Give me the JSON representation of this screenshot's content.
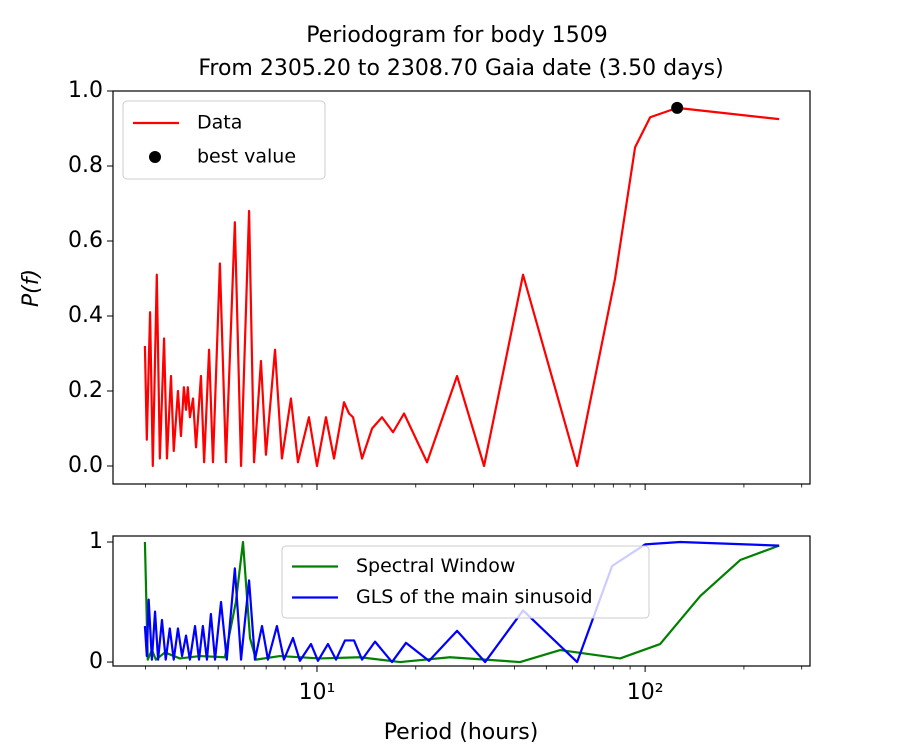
{
  "chart_data": [
    {
      "type": "line",
      "title": [
        "Periodogram for body 1509",
        "From 2305.20 to 2308.70 Gaia date (3.50 days)"
      ],
      "ylabel": "P(f)",
      "xscale": "log",
      "xlim": [
        2.39,
        318
      ],
      "ylim": [
        -0.048,
        1.0
      ],
      "yticks": [
        {
          "value": 0,
          "label": "0.0"
        },
        0.2,
        0.4,
        0.6,
        0.8,
        {
          "value": 1,
          "label": "1.0"
        }
      ],
      "xticks": [
        10,
        100
      ],
      "xminorticks": [
        3,
        4,
        5,
        6,
        7,
        8,
        9,
        20,
        30,
        40,
        50,
        60,
        70,
        80,
        90,
        200,
        300
      ],
      "legend": "upper left",
      "series": [
        {
          "name": "Data",
          "color": "#ff0000",
          "x": [
            2.99,
            3.03,
            3.1,
            3.16,
            3.25,
            3.32,
            3.42,
            3.49,
            3.59,
            3.66,
            3.77,
            3.85,
            3.93,
            3.99,
            4.04,
            4.1,
            4.19,
            4.28,
            4.43,
            4.53,
            4.69,
            4.82,
            5.06,
            5.28,
            5.62,
            5.87,
            6.21,
            6.43,
            6.75,
            6.99,
            7.45,
            7.82,
            8.33,
            8.75,
            9.45,
            10,
            10.65,
            11.27,
            12.09,
            12.52,
            12.88,
            13.72,
            14.72,
            15.78,
            17.05,
            18.42,
            21.65,
            26.72,
            32.3,
            42.46,
            62.06,
            80.98,
            93.2,
            103.6,
            125.2,
            256.1
          ],
          "values": [
            0.32,
            0.07,
            0.41,
            0.0,
            0.51,
            0.02,
            0.34,
            0.02,
            0.24,
            0.04,
            0.2,
            0.08,
            0.21,
            0.15,
            0.21,
            0.13,
            0.18,
            0.05,
            0.24,
            0.01,
            0.31,
            0.01,
            0.54,
            0.01,
            0.65,
            0.0,
            0.68,
            0.01,
            0.28,
            0.03,
            0.31,
            0.02,
            0.18,
            0.01,
            0.13,
            0.0,
            0.13,
            0.02,
            0.17,
            0.14,
            0.13,
            0.02,
            0.1,
            0.13,
            0.09,
            0.14,
            0.01,
            0.24,
            0.0,
            0.51,
            0.0,
            0.5,
            0.85,
            0.93,
            0.955,
            0.925
          ]
        },
        {
          "name": "best value",
          "type": "scatter",
          "color": "#000000",
          "x": [
            125.2
          ],
          "values": [
            0.955
          ]
        }
      ]
    },
    {
      "type": "line",
      "xlabel": "Period (hours)",
      "xscale": "log",
      "xlim": [
        2.39,
        318
      ],
      "ylim": [
        -0.033,
        1.05
      ],
      "yticks": [
        0,
        1
      ],
      "xticks": [
        {
          "value": 10,
          "label": "10¹"
        },
        {
          "value": 100,
          "label": "10²"
        }
      ],
      "xminorticks": [
        3,
        4,
        5,
        6,
        7,
        8,
        9,
        20,
        30,
        40,
        50,
        60,
        70,
        80,
        90,
        200,
        300
      ],
      "legend": "upper center",
      "series": [
        {
          "name": "Spectral Window",
          "color": "#008000",
          "x": [
            2.99,
            3.05,
            3.14,
            3.23,
            3.44,
            3.82,
            4.4,
            5.24,
            5.66,
            5.95,
            6.25,
            6.52,
            7.71,
            10.21,
            13.52,
            17.91,
            25.44,
            41.58,
            55.08,
            83.9,
            111.1,
            147.2,
            194.9,
            256.1
          ],
          "values": [
            1.0,
            0.02,
            0.1,
            0.02,
            0.08,
            0.03,
            0.05,
            0.04,
            0.5,
            1.0,
            0.2,
            0.02,
            0.05,
            0.03,
            0.04,
            0.0,
            0.04,
            0.0,
            0.1,
            0.03,
            0.15,
            0.55,
            0.85,
            0.97
          ]
        },
        {
          "name": "GLS of the main sinusoid",
          "color": "#0000ff",
          "x": [
            2.99,
            3.03,
            3.07,
            3.14,
            3.21,
            3.28,
            3.37,
            3.46,
            3.56,
            3.66,
            3.77,
            3.88,
            3.99,
            4.1,
            4.25,
            4.37,
            4.49,
            4.62,
            4.75,
            4.89,
            5.1,
            5.31,
            5.62,
            5.87,
            6.21,
            6.47,
            6.8,
            7.09,
            7.55,
            7.93,
            8.45,
            8.87,
            9.59,
            10.07,
            10.8,
            11.43,
            12.17,
            12.97,
            13.72,
            15.03,
            16.93,
            18.68,
            21.95,
            26.72,
            32.53,
            42.46,
            62.06,
            79.3,
            100,
            127.9,
            256.1
          ],
          "values": [
            0.3,
            0.05,
            0.52,
            0.02,
            0.42,
            0.02,
            0.35,
            0.02,
            0.28,
            0.02,
            0.28,
            0.05,
            0.22,
            0.02,
            0.3,
            0.02,
            0.3,
            0.02,
            0.4,
            0.02,
            0.5,
            0.02,
            0.78,
            0.02,
            0.68,
            0.02,
            0.3,
            0.02,
            0.3,
            0.02,
            0.2,
            0.01,
            0.15,
            0.01,
            0.15,
            0.02,
            0.18,
            0.18,
            0.02,
            0.17,
            0.0,
            0.16,
            0.01,
            0.26,
            0.0,
            0.43,
            0.0,
            0.8,
            0.98,
            1.0,
            0.97
          ]
        }
      ]
    }
  ]
}
